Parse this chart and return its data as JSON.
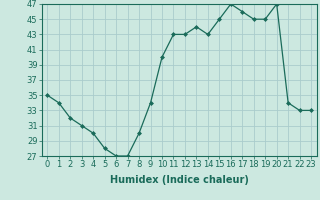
{
  "x": [
    0,
    1,
    2,
    3,
    4,
    5,
    6,
    7,
    8,
    9,
    10,
    11,
    12,
    13,
    14,
    15,
    16,
    17,
    18,
    19,
    20,
    21,
    22,
    23
  ],
  "y": [
    35,
    34,
    32,
    31,
    30,
    28,
    27,
    27,
    30,
    34,
    40,
    43,
    43,
    44,
    43,
    45,
    47,
    46,
    45,
    45,
    47,
    34,
    33,
    33
  ],
  "line_color": "#1a6b5a",
  "marker": "D",
  "marker_size": 2,
  "bg_color": "#cce8e0",
  "grid_color": "#aacccc",
  "xlabel": "Humidex (Indice chaleur)",
  "ylim": [
    27,
    47
  ],
  "yticks": [
    27,
    29,
    31,
    33,
    35,
    37,
    39,
    41,
    43,
    45,
    47
  ],
  "xticks": [
    0,
    1,
    2,
    3,
    4,
    5,
    6,
    7,
    8,
    9,
    10,
    11,
    12,
    13,
    14,
    15,
    16,
    17,
    18,
    19,
    20,
    21,
    22,
    23
  ],
  "xlabel_fontsize": 7,
  "tick_fontsize": 6
}
